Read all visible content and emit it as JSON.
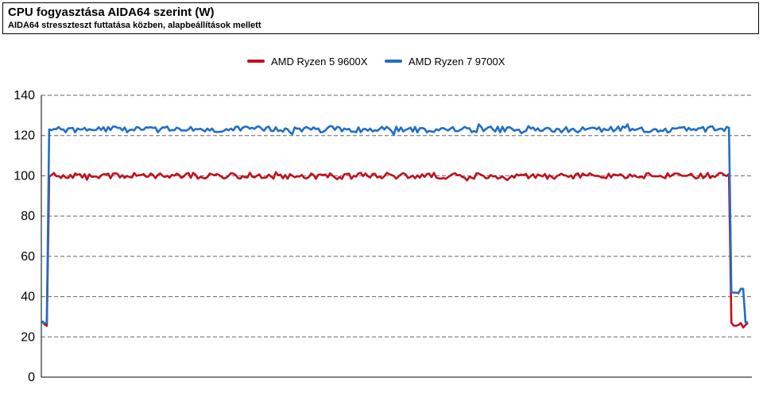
{
  "chart_data": {
    "type": "line",
    "title": "CPU fogyasztása AIDA64 szerint (W)",
    "subtitle": "AIDA64 stresszteszt futtatása közben, alapbeállítások mellett",
    "xlabel": "",
    "ylabel": "",
    "ylim": [
      0,
      140
    ],
    "yticks": [
      0,
      20,
      40,
      60,
      80,
      100,
      120,
      140
    ],
    "grid": "horizontal-dashed",
    "legend_position": "top",
    "x_count": 300,
    "series": [
      {
        "name": "AMD Ryzen 5 9600X",
        "color": "#c0111f",
        "idle_start": 27,
        "load_level": 100,
        "idle_end": 25,
        "load_start_index": 3,
        "load_end_index": 291
      },
      {
        "name": "AMD Ryzen 7 9700X",
        "color": "#1f6fc6",
        "idle_start": 28,
        "load_level": 123,
        "tail_level": 43,
        "idle_end": 27,
        "load_start_index": 3,
        "load_end_index": 291
      }
    ]
  }
}
